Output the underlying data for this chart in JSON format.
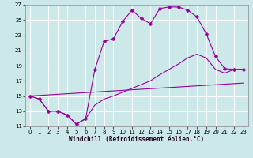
{
  "xlabel": "Windchill (Refroidissement éolien,°C)",
  "bg_color": "#cce8e8",
  "grid_color": "#ffffff",
  "line_color": "#990099",
  "xlim": [
    -0.5,
    23.5
  ],
  "ylim": [
    11,
    27
  ],
  "yticks": [
    11,
    13,
    15,
    17,
    19,
    21,
    23,
    25,
    27
  ],
  "xticks": [
    0,
    1,
    2,
    3,
    4,
    5,
    6,
    7,
    8,
    9,
    10,
    11,
    12,
    13,
    14,
    15,
    16,
    17,
    18,
    19,
    20,
    21,
    22,
    23
  ],
  "line1_x": [
    0,
    1,
    2,
    3,
    4,
    5,
    6,
    7,
    8,
    9,
    10,
    11,
    12,
    13,
    14,
    15,
    16,
    17,
    18,
    19,
    20,
    21,
    22,
    23
  ],
  "line1_y": [
    15.0,
    14.6,
    13.0,
    13.0,
    12.5,
    11.3,
    12.0,
    18.5,
    22.2,
    22.5,
    24.8,
    26.3,
    25.2,
    24.5,
    26.5,
    26.7,
    26.7,
    26.3,
    25.4,
    23.2,
    20.2,
    18.6,
    18.5,
    18.5
  ],
  "line2_x": [
    0,
    1,
    2,
    3,
    4,
    5,
    6,
    7,
    8,
    9,
    10,
    11,
    12,
    13,
    14,
    15,
    16,
    17,
    18,
    19,
    20,
    21,
    22,
    23
  ],
  "line2_y": [
    15.0,
    14.6,
    13.0,
    13.0,
    12.5,
    11.3,
    12.0,
    13.8,
    14.6,
    15.0,
    15.5,
    16.0,
    16.5,
    17.0,
    17.8,
    18.5,
    19.2,
    20.0,
    20.5,
    20.0,
    18.5,
    18.0,
    18.5,
    18.5
  ],
  "line3_x": [
    0,
    23
  ],
  "line3_y": [
    15.0,
    16.7
  ],
  "marker_style": "D",
  "marker_size": 2.5,
  "xlabel_fontsize": 5.5,
  "tick_fontsize": 5
}
